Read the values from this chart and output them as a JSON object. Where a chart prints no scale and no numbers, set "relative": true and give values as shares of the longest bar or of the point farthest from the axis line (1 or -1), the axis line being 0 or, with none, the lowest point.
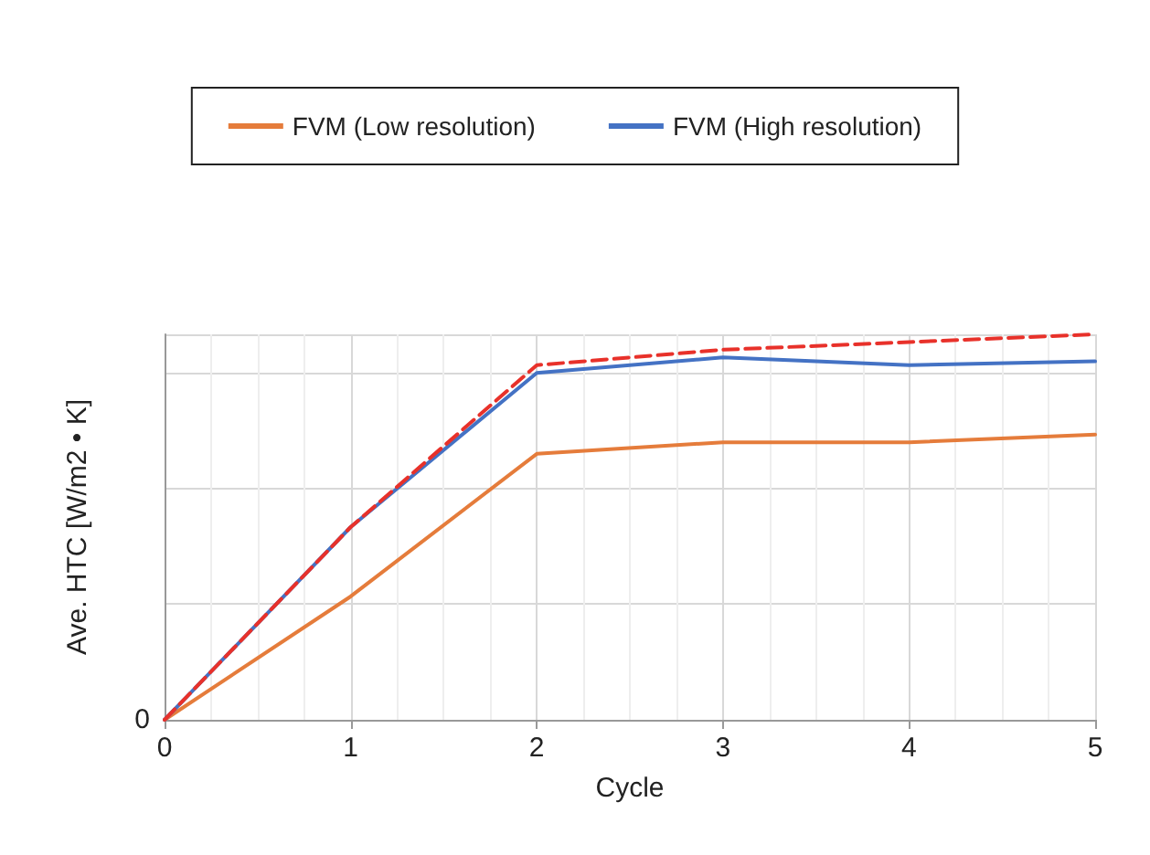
{
  "chart_data": {
    "type": "line",
    "xlabel": "Cycle",
    "ylabel": "Ave. HTC [W/m2 • K]",
    "relative": true,
    "x": [
      0,
      1,
      2,
      3,
      4,
      5
    ],
    "xlim": [
      0,
      5
    ],
    "xticks": [
      0,
      1,
      2,
      3,
      4,
      5
    ],
    "grid": true,
    "legend": "top",
    "marker": "none",
    "annotations": [
      "0"
    ],
    "series": [
      {
        "name": "FVM (Low resolution)",
        "color": "#e57c3b",
        "line_style": "solid",
        "values": [
          0,
          0.32,
          0.69,
          0.72,
          0.72,
          0.74
        ]
      },
      {
        "name": "FVM (High resolution)",
        "color": "#4472c4",
        "line_style": "solid",
        "x": [
          0,
          1,
          2,
          3,
          3.5,
          4,
          5
        ],
        "values": [
          0,
          0.5,
          0.9,
          0.94,
          0.93,
          0.92,
          0.93
        ]
      },
      {
        "color": "#e8312a",
        "line_style": "dashed",
        "values": [
          0,
          0.5,
          0.92,
          0.96,
          0.98,
          1
        ]
      }
    ]
  }
}
